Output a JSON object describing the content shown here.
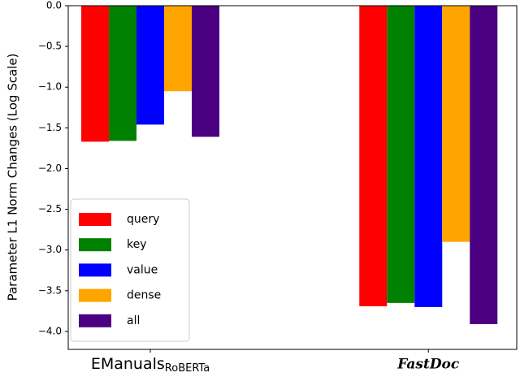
{
  "chart_data": {
    "type": "bar",
    "y_label": "Parameter L1 Norm Changes (Log Scale)",
    "categories": [
      "EManuals",
      "FastDoc"
    ],
    "category_subscripts": [
      "RoBERTa",
      null
    ],
    "series": [
      {
        "name": "query",
        "color": "#ff0000",
        "values": [
          -1.67,
          -3.69
        ]
      },
      {
        "name": "key",
        "color": "#008000",
        "values": [
          -1.66,
          -3.65
        ]
      },
      {
        "name": "value",
        "color": "#0000ff",
        "values": [
          -1.46,
          -3.7
        ]
      },
      {
        "name": "dense",
        "color": "#ffa500",
        "values": [
          -1.05,
          -2.9
        ]
      },
      {
        "name": "all",
        "color": "#4b0082",
        "values": [
          -1.61,
          -3.91
        ]
      }
    ],
    "ylim": [
      -4.22,
      0
    ],
    "yticks": [
      {
        "value": 0,
        "label": "0.0"
      },
      {
        "value": -0.5,
        "label": "−0.5"
      },
      {
        "value": -1,
        "label": "−1.0"
      },
      {
        "value": -1.5,
        "label": "−1.5"
      },
      {
        "value": -2,
        "label": "−2.0"
      },
      {
        "value": -2.5,
        "label": "−2.5"
      },
      {
        "value": -3,
        "label": "−3.0"
      },
      {
        "value": -3.5,
        "label": "−3.5"
      },
      {
        "value": -4,
        "label": "−4.0"
      }
    ],
    "legend": "lower left"
  }
}
